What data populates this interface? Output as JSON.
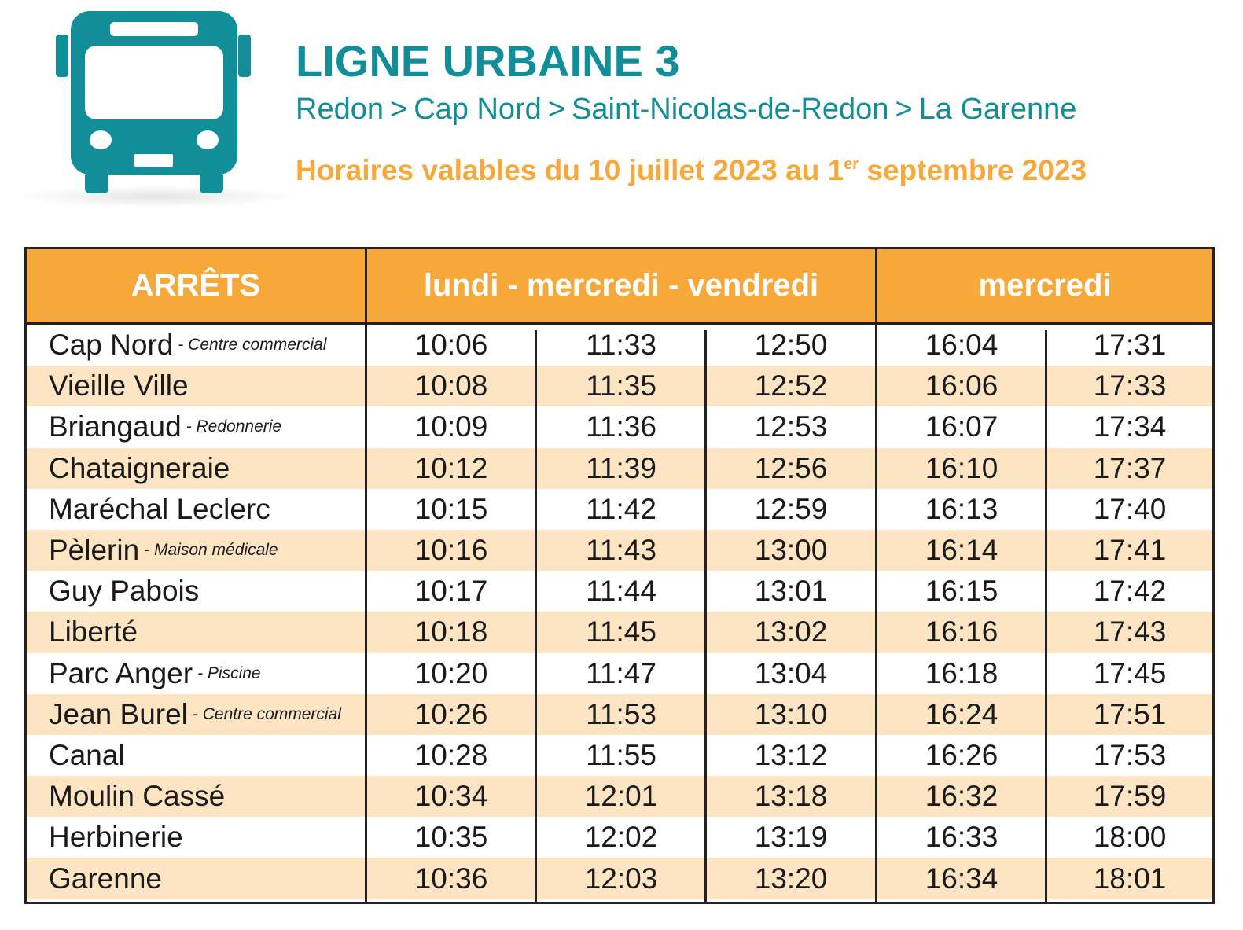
{
  "header": {
    "title": "LIGNE URBAINE 3",
    "route": [
      "Redon",
      "Cap Nord",
      "Saint-Nicolas-de-Redon",
      "La Garenne"
    ],
    "route_separator": ">",
    "validity_before": "Horaires valables du 10 juillet 2023 au 1",
    "validity_sup": "er",
    "validity_after": " septembre 2023"
  },
  "colors": {
    "teal": "#118e98",
    "orange": "#f7a83a",
    "row_alt": "#fde4c3"
  },
  "icon": "bus-icon",
  "table": {
    "headers": [
      "ARRÊTS",
      "lundi - mercredi - vendredi",
      "mercredi"
    ],
    "rows": [
      {
        "stop": "Cap Nord",
        "detail": "- Centre commercial",
        "times": [
          "10:06",
          "11:33",
          "12:50",
          "16:04",
          "17:31"
        ]
      },
      {
        "stop": "Vieille Ville",
        "detail": "",
        "times": [
          "10:08",
          "11:35",
          "12:52",
          "16:06",
          "17:33"
        ]
      },
      {
        "stop": "Briangaud",
        "detail": "- Redonnerie",
        "times": [
          "10:09",
          "11:36",
          "12:53",
          "16:07",
          "17:34"
        ]
      },
      {
        "stop": "Chataigneraie",
        "detail": "",
        "times": [
          "10:12",
          "11:39",
          "12:56",
          "16:10",
          "17:37"
        ]
      },
      {
        "stop": "Maréchal Leclerc",
        "detail": "",
        "times": [
          "10:15",
          "11:42",
          "12:59",
          "16:13",
          "17:40"
        ]
      },
      {
        "stop": "Pèlerin",
        "detail": "- Maison médicale",
        "times": [
          "10:16",
          "11:43",
          "13:00",
          "16:14",
          "17:41"
        ]
      },
      {
        "stop": "Guy Pabois",
        "detail": "",
        "times": [
          "10:17",
          "11:44",
          "13:01",
          "16:15",
          "17:42"
        ]
      },
      {
        "stop": "Liberté",
        "detail": "",
        "times": [
          "10:18",
          "11:45",
          "13:02",
          "16:16",
          "17:43"
        ]
      },
      {
        "stop": "Parc Anger",
        "detail": "- Piscine",
        "times": [
          "10:20",
          "11:47",
          "13:04",
          "16:18",
          "17:45"
        ]
      },
      {
        "stop": "Jean Burel",
        "detail": "- Centre commercial",
        "times": [
          "10:26",
          "11:53",
          "13:10",
          "16:24",
          "17:51"
        ]
      },
      {
        "stop": "Canal",
        "detail": "",
        "times": [
          "10:28",
          "11:55",
          "13:12",
          "16:26",
          "17:53"
        ]
      },
      {
        "stop": "Moulin Cassé",
        "detail": "",
        "times": [
          "10:34",
          "12:01",
          "13:18",
          "16:32",
          "17:59"
        ]
      },
      {
        "stop": "Herbinerie",
        "detail": "",
        "times": [
          "10:35",
          "12:02",
          "13:19",
          "16:33",
          "18:00"
        ]
      },
      {
        "stop": "Garenne",
        "detail": "",
        "times": [
          "10:36",
          "12:03",
          "13:20",
          "16:34",
          "18:01"
        ]
      }
    ]
  }
}
